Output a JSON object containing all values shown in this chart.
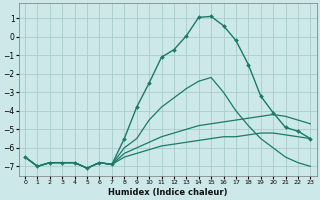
{
  "xlabel": "Humidex (Indice chaleur)",
  "xlim": [
    -0.5,
    23.5
  ],
  "ylim": [
    -7.5,
    1.8
  ],
  "yticks": [
    1,
    0,
    -1,
    -2,
    -3,
    -4,
    -5,
    -6,
    -7
  ],
  "xticks": [
    0,
    1,
    2,
    3,
    4,
    5,
    6,
    7,
    8,
    9,
    10,
    11,
    12,
    13,
    14,
    15,
    16,
    17,
    18,
    19,
    20,
    21,
    22,
    23
  ],
  "background_color": "#cde8e8",
  "grid_color": "#aacccc",
  "line_color": "#1a7a6a",
  "lines": [
    {
      "x": [
        0,
        1,
        2,
        3,
        4,
        5,
        6,
        7,
        8,
        9,
        10,
        11,
        12,
        13,
        14,
        15,
        16,
        17,
        18,
        19,
        20,
        21,
        22,
        23
      ],
      "y": [
        -6.5,
        -7.0,
        -6.8,
        -6.8,
        -6.8,
        -7.1,
        -6.8,
        -6.9,
        -6.5,
        -6.3,
        -6.1,
        -5.9,
        -5.8,
        -5.7,
        -5.6,
        -5.5,
        -5.4,
        -5.4,
        -5.3,
        -5.2,
        -5.2,
        -5.3,
        -5.4,
        -5.5
      ],
      "marker": false,
      "linewidth": 0.9
    },
    {
      "x": [
        0,
        1,
        2,
        3,
        4,
        5,
        6,
        7,
        8,
        9,
        10,
        11,
        12,
        13,
        14,
        15,
        16,
        17,
        18,
        19,
        20,
        21,
        22,
        23
      ],
      "y": [
        -6.5,
        -7.0,
        -6.8,
        -6.8,
        -6.8,
        -7.1,
        -6.8,
        -6.9,
        -6.3,
        -6.0,
        -5.7,
        -5.4,
        -5.2,
        -5.0,
        -4.8,
        -4.7,
        -4.6,
        -4.5,
        -4.4,
        -4.3,
        -4.2,
        -4.3,
        -4.5,
        -4.7
      ],
      "marker": false,
      "linewidth": 0.9
    },
    {
      "x": [
        0,
        1,
        2,
        3,
        4,
        5,
        6,
        7,
        8,
        9,
        10,
        11,
        12,
        13,
        14,
        15,
        16,
        17,
        18,
        19,
        20,
        21,
        22,
        23
      ],
      "y": [
        -6.5,
        -7.0,
        -6.8,
        -6.8,
        -6.8,
        -7.1,
        -6.8,
        -6.9,
        -6.0,
        -5.5,
        -4.5,
        -3.8,
        -3.3,
        -2.8,
        -2.4,
        -2.2,
        -3.0,
        -4.0,
        -4.8,
        -5.5,
        -6.0,
        -6.5,
        -6.8,
        -7.0
      ],
      "marker": false,
      "linewidth": 0.9
    },
    {
      "x": [
        0,
        1,
        2,
        3,
        4,
        5,
        6,
        7,
        8,
        9,
        10,
        11,
        12,
        13,
        14,
        15,
        16,
        17,
        18,
        19,
        20,
        21,
        22,
        23
      ],
      "y": [
        -6.5,
        -7.0,
        -6.8,
        -6.8,
        -6.8,
        -7.1,
        -6.8,
        -6.9,
        -5.5,
        -3.8,
        -2.5,
        -1.1,
        -0.7,
        0.05,
        1.05,
        1.1,
        0.6,
        -0.2,
        -1.5,
        -3.2,
        -4.1,
        -4.9,
        -5.1,
        -5.5
      ],
      "marker": true,
      "linewidth": 1.0
    }
  ]
}
